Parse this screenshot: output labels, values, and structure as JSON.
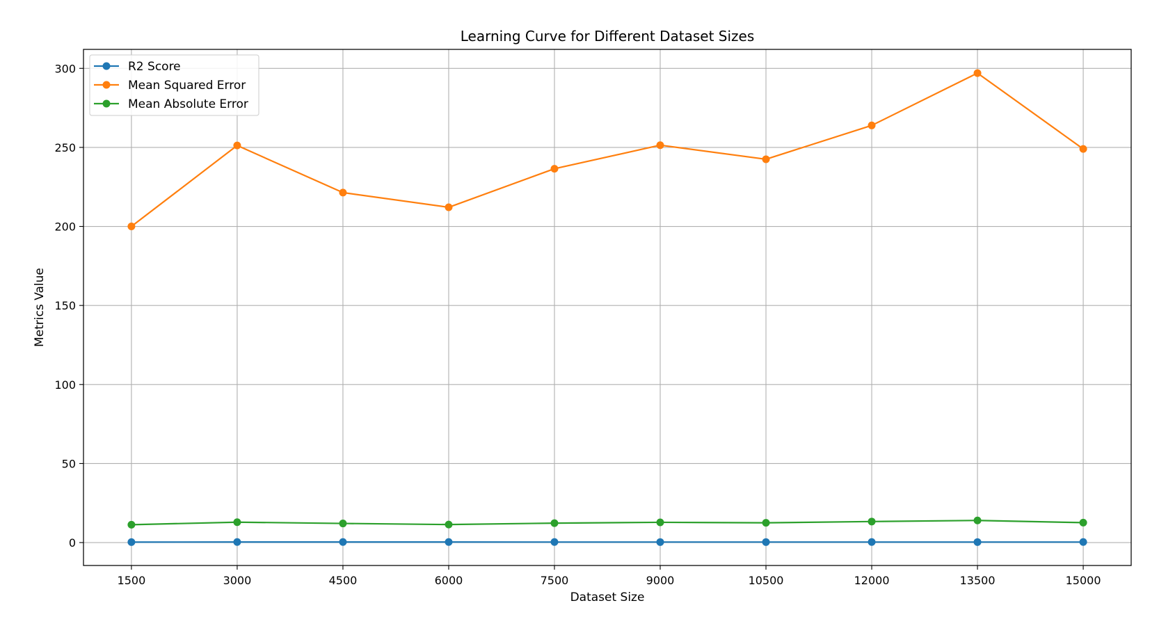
{
  "chart_data": {
    "type": "line",
    "title": "Learning Curve for Different Dataset Sizes",
    "xlabel": "Dataset Size",
    "ylabel": "Metrics Value",
    "x": [
      1500,
      3000,
      4500,
      6000,
      7500,
      9000,
      10500,
      12000,
      13500,
      15000
    ],
    "x_ticks": [
      "1500",
      "3000",
      "4500",
      "6000",
      "7500",
      "9000",
      "10500",
      "12000",
      "13500",
      "15000"
    ],
    "y_ticks": [
      "0",
      "50",
      "100",
      "150",
      "200",
      "250",
      "300"
    ],
    "xlim": [
      820,
      15680
    ],
    "ylim": [
      -14.5,
      312
    ],
    "grid": true,
    "legend": "top-left",
    "series": [
      {
        "name": "R2 Score",
        "color": "#1f77b4",
        "values": [
          0.31,
          0.35,
          0.36,
          0.34,
          0.33,
          0.32,
          0.32,
          0.33,
          0.32,
          0.33
        ]
      },
      {
        "name": "Mean Squared Error",
        "color": "#ff7f0e",
        "values": [
          200.0,
          251.2,
          221.4,
          212.1,
          236.5,
          251.4,
          242.5,
          263.9,
          297.0,
          249.0
        ]
      },
      {
        "name": "Mean Absolute Error",
        "color": "#2ca02c",
        "values": [
          11.3,
          12.9,
          12.1,
          11.4,
          12.3,
          12.8,
          12.5,
          13.3,
          14.0,
          12.6
        ]
      }
    ]
  }
}
